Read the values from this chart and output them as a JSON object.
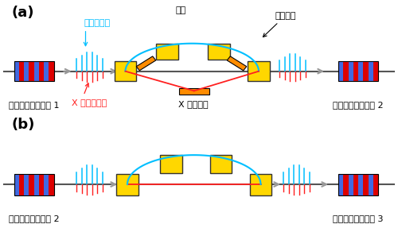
{
  "bg_color": "#ffffff",
  "label_a": "(a)",
  "label_b": "(b)",
  "text_undulator1": "アンジュレーター 1",
  "text_undulator2_a": "アンジュレーター 2",
  "text_undulator2_b": "アンジュレーター 2",
  "text_undulator3": "アンジュレーター 3",
  "text_electron_beam": "電子ビーム",
  "text_magnet": "磁石",
  "text_chicane": "シケイン",
  "text_xray_laser": "X 線レーザー",
  "text_xray_mirror": "X 線ミラー",
  "yellow": "#FFD700",
  "yellow_edge": "#333333",
  "orange": "#FF8C00",
  "red": "#FF2020",
  "blue_stripe": "#4169E1",
  "red_stripe": "#DD0000",
  "cyan": "#00BFFF",
  "gray": "#999999",
  "dark_gray": "#555555"
}
